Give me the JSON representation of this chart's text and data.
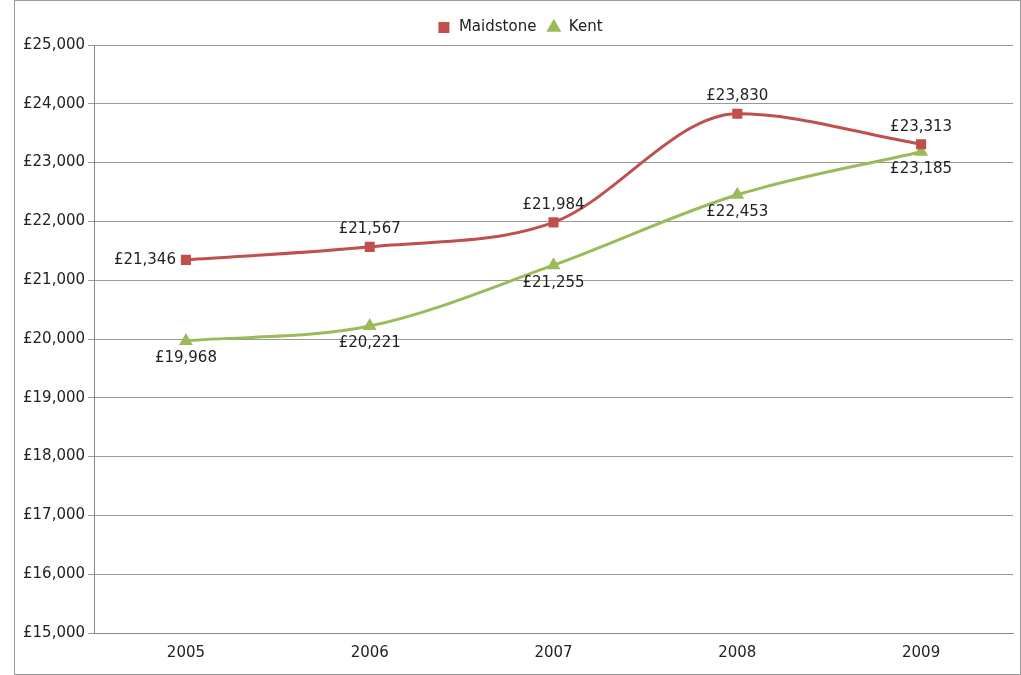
{
  "chart_data": {
    "type": "line",
    "categories": [
      "2005",
      "2006",
      "2007",
      "2008",
      "2009"
    ],
    "series": [
      {
        "name": "Maidstone",
        "color": "#c0504d",
        "marker": "square",
        "values": [
          21346,
          21567,
          21984,
          23830,
          23313
        ],
        "value_labels": [
          "£21,346",
          "£21,567",
          "£21,984",
          "£23,830",
          "£23,313"
        ]
      },
      {
        "name": "Kent",
        "color": "#9bbb59",
        "marker": "triangle",
        "values": [
          19968,
          20221,
          21255,
          22453,
          23185
        ],
        "value_labels": [
          "£19,968",
          "£20,221",
          "£21,255",
          "£22,453",
          "£23,185"
        ]
      }
    ],
    "ylim": [
      15000,
      25000
    ],
    "yticks": [
      {
        "value": 15000,
        "label": "£15,000"
      },
      {
        "value": 16000,
        "label": "£16,000"
      },
      {
        "value": 17000,
        "label": "£17,000"
      },
      {
        "value": 18000,
        "label": "£18,000"
      },
      {
        "value": 19000,
        "label": "£19,000"
      },
      {
        "value": 20000,
        "label": "£20,000"
      },
      {
        "value": 21000,
        "label": "£21,000"
      },
      {
        "value": 22000,
        "label": "£22,000"
      },
      {
        "value": 23000,
        "label": "£23,000"
      },
      {
        "value": 24000,
        "label": "£24,000"
      },
      {
        "value": 25000,
        "label": "£25,000"
      }
    ],
    "grid": "y",
    "legend": "top"
  }
}
